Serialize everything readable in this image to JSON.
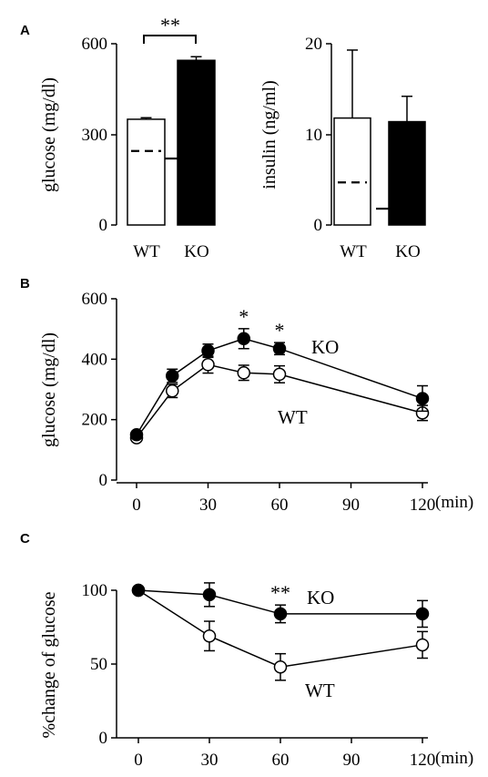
{
  "panels": {
    "a": "A",
    "b": "B",
    "c": "C"
  },
  "colors": {
    "ko": "#000000",
    "wt": "#ffffff",
    "stroke": "#000000"
  },
  "chart_data": [
    {
      "id": "A-glucose",
      "type": "bar",
      "categories": [
        "WT",
        "KO"
      ],
      "values": [
        350,
        545
      ],
      "error": [
        5,
        12
      ],
      "baseline": [
        245,
        220
      ],
      "ylabel": "glucose (mg/dl)",
      "ylim": [
        0,
        600
      ],
      "yticks": [
        "0",
        "300",
        "600"
      ],
      "annotation": "**",
      "fills": [
        "#ffffff",
        "#000000"
      ]
    },
    {
      "id": "A-insulin",
      "type": "bar",
      "categories": [
        "WT",
        "KO"
      ],
      "values": [
        11.8,
        11.4
      ],
      "error": [
        7.5,
        2.8
      ],
      "baseline": [
        4.7,
        1.8
      ],
      "ylabel": "insulin (ng/ml)",
      "ylim": [
        0,
        20
      ],
      "yticks": [
        "0",
        "10",
        "20"
      ],
      "fills": [
        "#ffffff",
        "#000000"
      ]
    },
    {
      "id": "B",
      "type": "line",
      "ylabel": "glucose (mg/dl)",
      "xunit": "(min)",
      "x": [
        0,
        15,
        30,
        45,
        60,
        120
      ],
      "xticks": [
        "0",
        "30",
        "60",
        "90",
        "120"
      ],
      "xlim": [
        0,
        120
      ],
      "ylim": [
        0,
        600
      ],
      "yticks": [
        "0",
        "200",
        "400",
        "600"
      ],
      "series": [
        {
          "name": "KO",
          "filled": true,
          "values": [
            150,
            345,
            428,
            468,
            435,
            270
          ],
          "error": [
            10,
            22,
            22,
            33,
            20,
            42
          ]
        },
        {
          "name": "WT",
          "filled": false,
          "values": [
            140,
            295,
            382,
            355,
            350,
            222
          ],
          "error": [
            10,
            22,
            28,
            25,
            28,
            25
          ]
        }
      ],
      "stars": [
        {
          "x": 45,
          "text": "*"
        },
        {
          "x": 60,
          "text": "*"
        }
      ]
    },
    {
      "id": "C",
      "type": "line",
      "ylabel": "%change of glucose",
      "xunit": "(min)",
      "x": [
        0,
        30,
        60,
        120
      ],
      "xticks": [
        "0",
        "30",
        "60",
        "90",
        "120"
      ],
      "xlim": [
        0,
        120
      ],
      "ylim": [
        0,
        100
      ],
      "yticks": [
        "0",
        "50",
        "100"
      ],
      "series": [
        {
          "name": "KO",
          "filled": true,
          "values": [
            100,
            97,
            84,
            84
          ],
          "error": [
            0,
            8,
            6,
            9
          ]
        },
        {
          "name": "WT",
          "filled": false,
          "values": [
            100,
            69,
            48,
            63
          ],
          "error": [
            0,
            10,
            9,
            9
          ]
        }
      ],
      "stars": [
        {
          "x": 60,
          "text": "**"
        }
      ]
    }
  ]
}
